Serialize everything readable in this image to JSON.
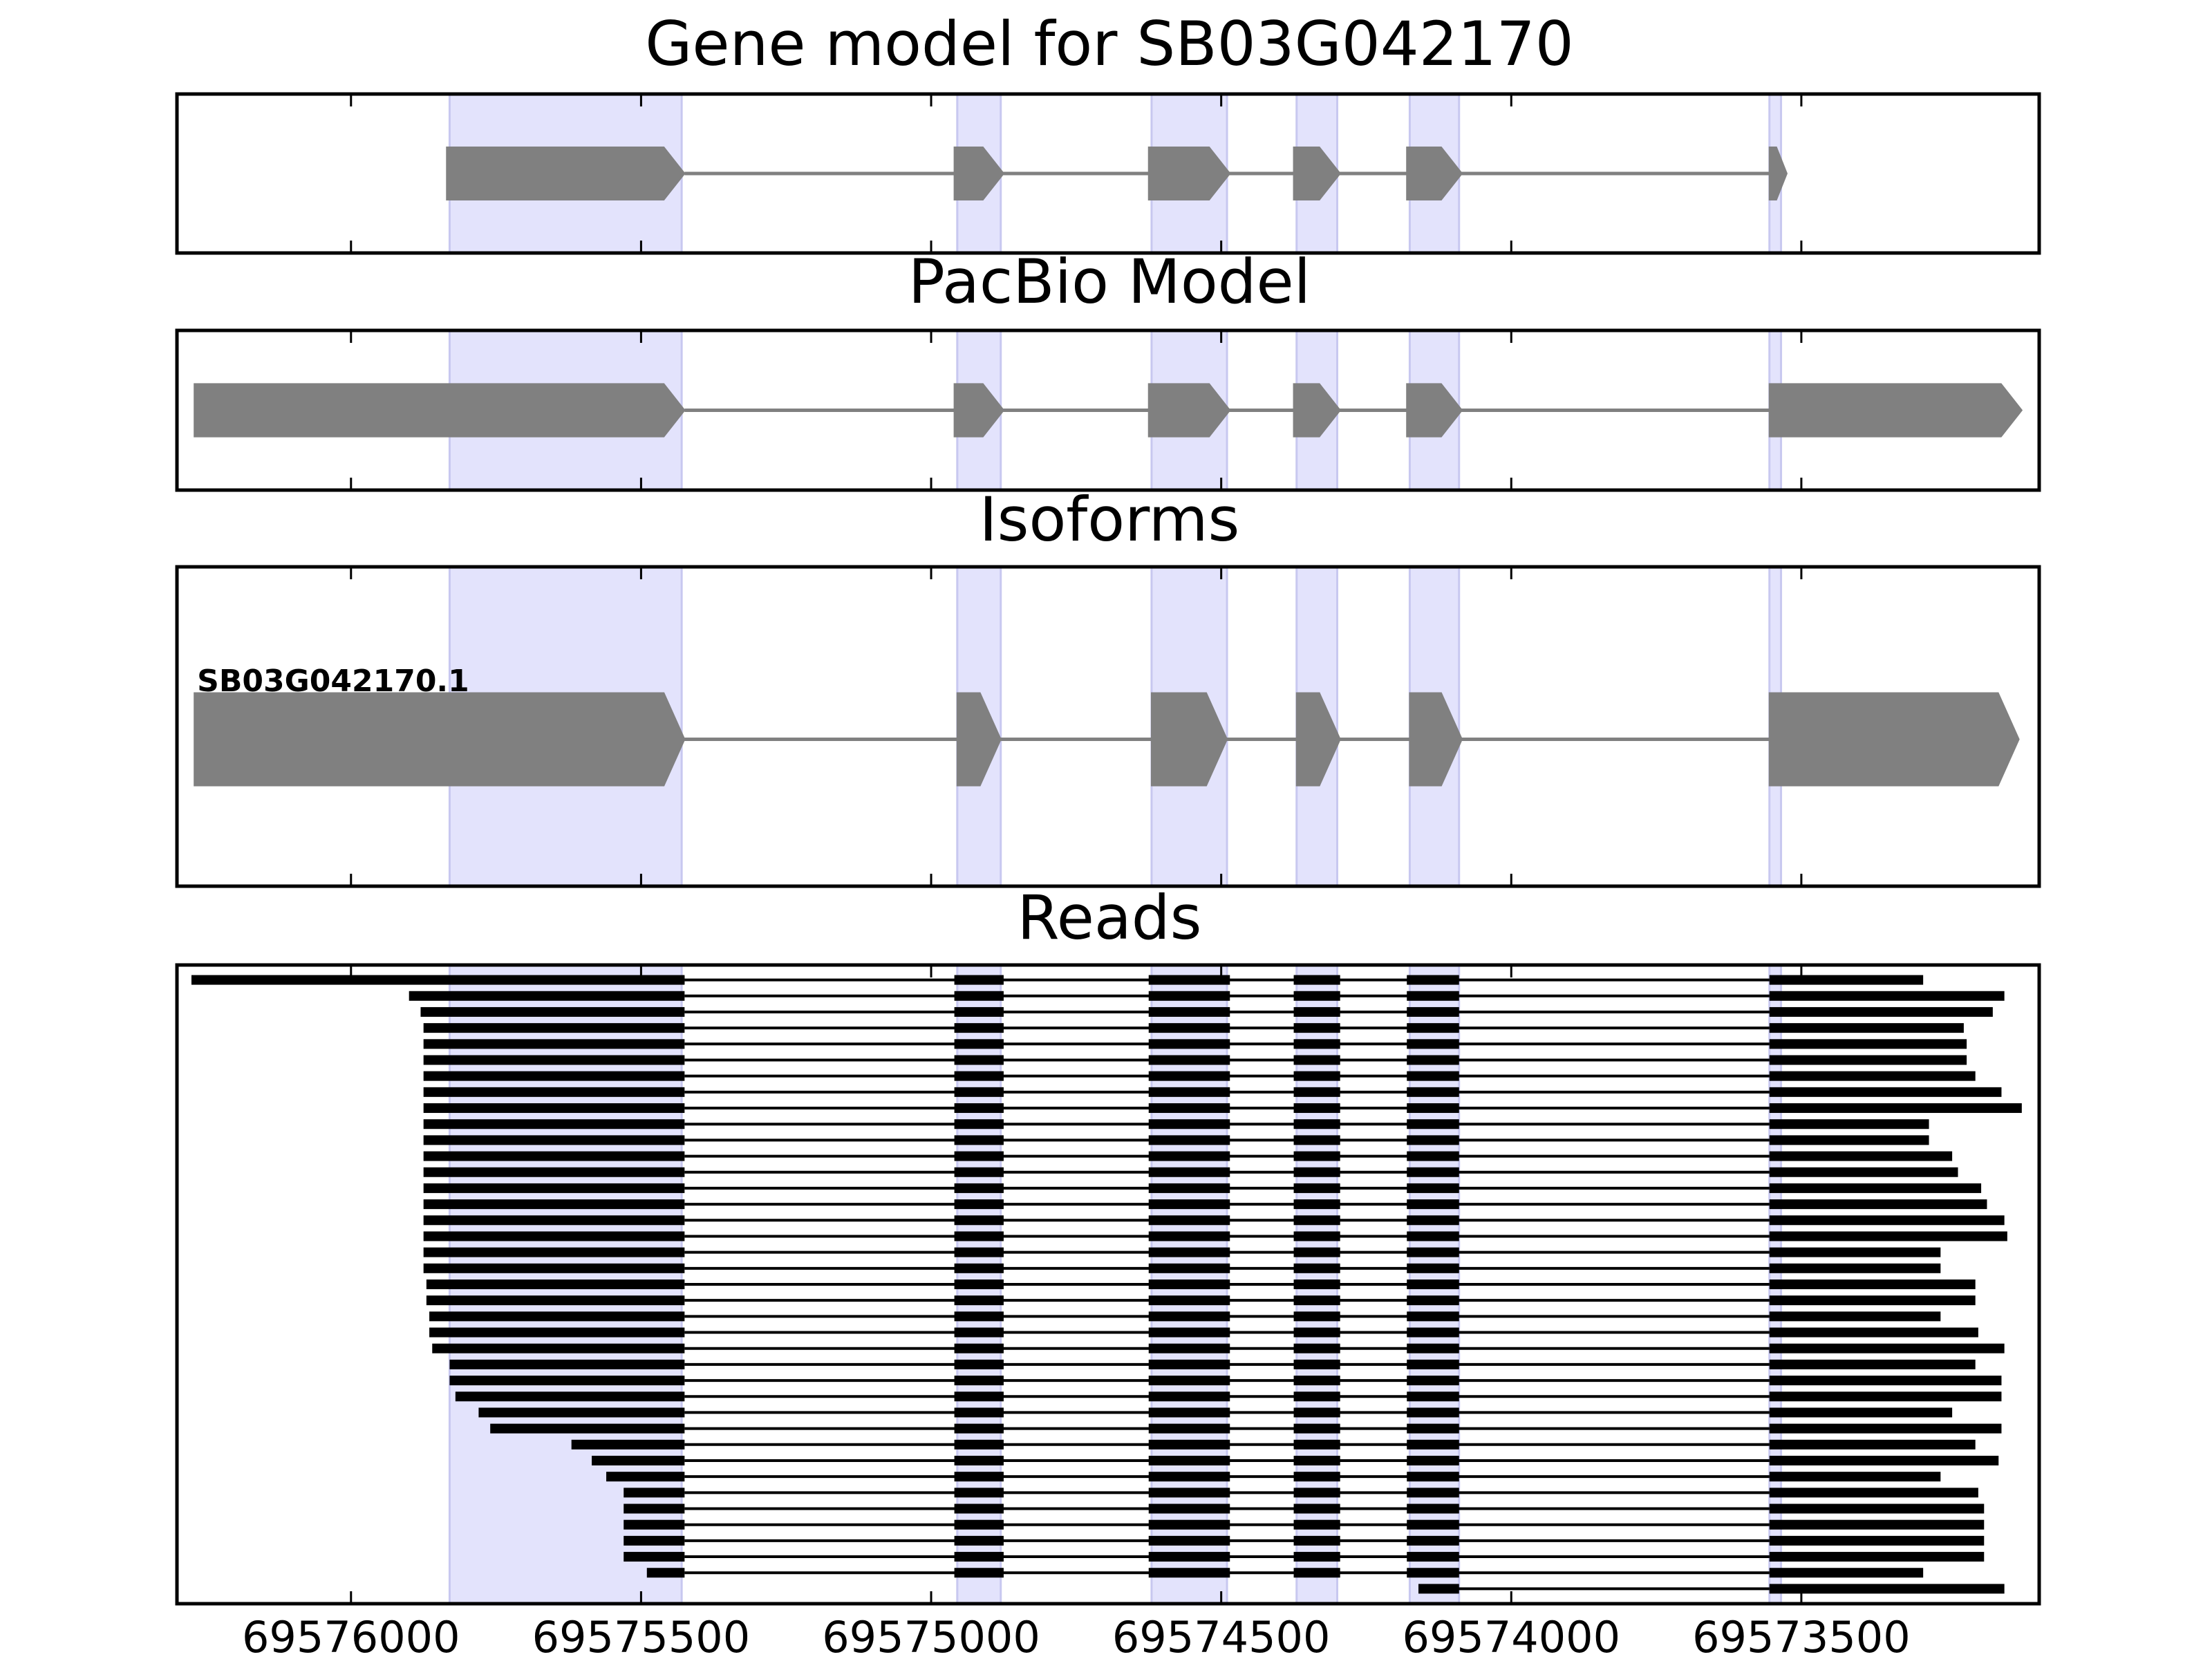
{
  "colors": {
    "background": "#ffffff",
    "highlight": "#e3e3fc",
    "highlight_edge": "#c8c8f0",
    "exon": "#808080",
    "intron": "#808080",
    "read": "#000000",
    "frame": "#000000"
  },
  "chart_data": [
    {
      "type": "gene_model",
      "title": "Gene model for SB03G042170",
      "x_reversed": true,
      "xlim": [
        69576300,
        69573090
      ],
      "exon_height_fraction": 0.33,
      "highlights": [
        [
          69575830,
          69575430
        ],
        [
          69574955,
          69574880
        ],
        [
          69574620,
          69574490
        ],
        [
          69574370,
          69574300
        ],
        [
          69574175,
          69574090
        ],
        [
          69573555,
          69573535
        ]
      ],
      "exons": [
        [
          69575835,
          69575425
        ],
        [
          69574960,
          69574875
        ],
        [
          69574625,
          69574485
        ],
        [
          69574375,
          69574295
        ],
        [
          69574180,
          69574085
        ],
        [
          69573555,
          69573525
        ]
      ],
      "labels": []
    },
    {
      "type": "gene_model",
      "title": "PacBio Model",
      "x_reversed": true,
      "xlim": [
        69576300,
        69573090
      ],
      "exon_height_fraction": 0.33,
      "highlights": [
        [
          69575830,
          69575430
        ],
        [
          69574955,
          69574880
        ],
        [
          69574620,
          69574490
        ],
        [
          69574370,
          69574300
        ],
        [
          69574175,
          69574090
        ],
        [
          69573555,
          69573535
        ]
      ],
      "exons": [
        [
          69576270,
          69575425
        ],
        [
          69574960,
          69574875
        ],
        [
          69574625,
          69574485
        ],
        [
          69574375,
          69574295
        ],
        [
          69574180,
          69574085
        ],
        [
          69573555,
          69573120
        ]
      ],
      "labels": []
    },
    {
      "type": "gene_model",
      "title": "Isoforms",
      "x_reversed": true,
      "xlim": [
        69576300,
        69573090
      ],
      "exon_height_fraction": 0.29,
      "highlights": [
        [
          69575830,
          69575430
        ],
        [
          69574955,
          69574880
        ],
        [
          69574620,
          69574490
        ],
        [
          69574370,
          69574300
        ],
        [
          69574175,
          69574090
        ],
        [
          69573555,
          69573535
        ]
      ],
      "exons": [
        [
          69576270,
          69575425
        ],
        [
          69574955,
          69574880
        ],
        [
          69574620,
          69574490
        ],
        [
          69574370,
          69574295
        ],
        [
          69574175,
          69574085
        ],
        [
          69573555,
          69573125
        ]
      ],
      "labels": [
        "SB03G042170.1"
      ]
    },
    {
      "type": "reads",
      "title": "Reads",
      "x_reversed": true,
      "xlim": [
        69576300,
        69573090
      ],
      "highlights": [
        [
          69575830,
          69575430
        ],
        [
          69574955,
          69574880
        ],
        [
          69574620,
          69574490
        ],
        [
          69574370,
          69574300
        ],
        [
          69574175,
          69574090
        ],
        [
          69573555,
          69573535
        ]
      ],
      "inner_exons": [
        [
          69574960,
          69574875
        ],
        [
          69574625,
          69574485
        ],
        [
          69574375,
          69574295
        ],
        [
          69574180,
          69574090
        ]
      ],
      "reads": [
        {
          "start": 69576275,
          "end": 69573290,
          "rows": [
            1
          ]
        },
        {
          "start": 69575900,
          "end": 69573150
        },
        {
          "start": 69575880,
          "end": 69573170
        },
        {
          "start": 69575875,
          "end": 69573220
        },
        {
          "start": 69575875,
          "end": 69573215
        },
        {
          "start": 69575875,
          "end": 69573215
        },
        {
          "start": 69575875,
          "end": 69573200
        },
        {
          "start": 69575875,
          "end": 69573155
        },
        {
          "start": 69575875,
          "end": 69573120
        },
        {
          "start": 69575875,
          "end": 69573280
        },
        {
          "start": 69575875,
          "end": 69573280
        },
        {
          "start": 69575875,
          "end": 69573240
        },
        {
          "start": 69575875,
          "end": 69573230
        },
        {
          "start": 69575875,
          "end": 69573190
        },
        {
          "start": 69575875,
          "end": 69573180
        },
        {
          "start": 69575875,
          "end": 69573150
        },
        {
          "start": 69575875,
          "end": 69573145
        },
        {
          "start": 69575875,
          "end": 69573260
        },
        {
          "start": 69575875,
          "end": 69573260
        },
        {
          "start": 69575870,
          "end": 69573200
        },
        {
          "start": 69575870,
          "end": 69573200
        },
        {
          "start": 69575865,
          "end": 69573260
        },
        {
          "start": 69575865,
          "end": 69573195
        },
        {
          "start": 69575860,
          "end": 69573150
        },
        {
          "start": 69575830,
          "end": 69573200
        },
        {
          "start": 69575830,
          "end": 69573155
        },
        {
          "start": 69575820,
          "end": 69573155
        },
        {
          "start": 69575780,
          "end": 69573240
        },
        {
          "start": 69575760,
          "end": 69573155
        },
        {
          "start": 69575620,
          "end": 69573200
        },
        {
          "start": 69575585,
          "end": 69573160
        },
        {
          "start": 69575560,
          "end": 69573260
        },
        {
          "start": 69575530,
          "end": 69573195
        },
        {
          "start": 69575530,
          "end": 69573185
        },
        {
          "start": 69575530,
          "end": 69573185
        },
        {
          "start": 69575530,
          "end": 69573185
        },
        {
          "start": 69575530,
          "end": 69573185
        },
        {
          "start": 69575490,
          "end": 69573290
        },
        {
          "start": 69574160,
          "end": 69573150,
          "from_exon": 5
        }
      ],
      "five_prime_exon_end": 69575425,
      "three_prime_exon_start": 69573555
    }
  ],
  "x_ticks": [
    {
      "value": 69576000,
      "label": "69576000"
    },
    {
      "value": 69575500,
      "label": "69575500"
    },
    {
      "value": 69575000,
      "label": "69575000"
    },
    {
      "value": 69574500,
      "label": "69574500"
    },
    {
      "value": 69574000,
      "label": "69574000"
    },
    {
      "value": 69573500,
      "label": "69573500"
    }
  ]
}
